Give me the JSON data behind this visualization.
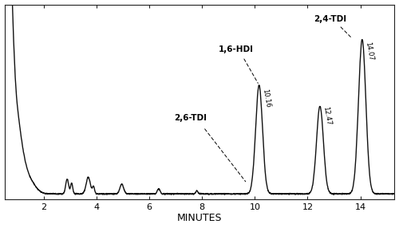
{
  "xlim": [
    0.5,
    15.3
  ],
  "ylim": [
    -0.03,
    1.08
  ],
  "xlabel": "MINUTES",
  "xlabel_fontsize": 9,
  "xticks": [
    2,
    4,
    6,
    8,
    10,
    12,
    14
  ],
  "background_color": "#ffffff",
  "line_color": "#111111",
  "line_width": 1.0,
  "figsize": [
    5.0,
    2.86
  ],
  "dpi": 100
}
